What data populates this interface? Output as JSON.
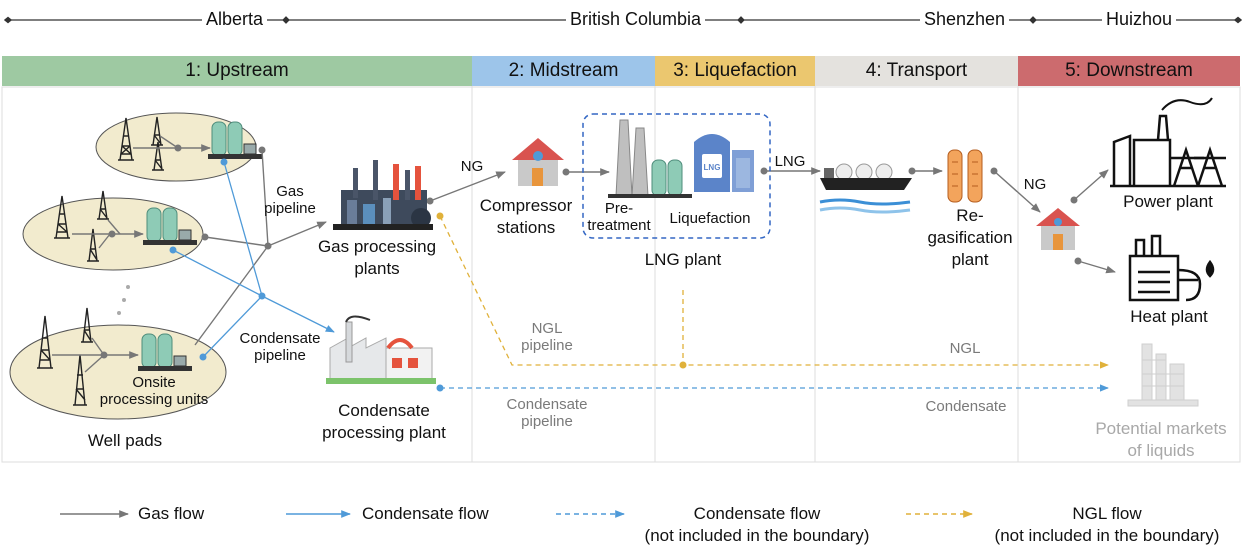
{
  "regions": [
    "Alberta",
    "British Columbia",
    "Shenzhen",
    "Huizhou"
  ],
  "stages": [
    {
      "label": "1: Upstream",
      "color": "#9ec9a2"
    },
    {
      "label": "2: Midstream",
      "color": "#9dc5ea"
    },
    {
      "label": "3: Liquefaction",
      "color": "#ebc76f"
    },
    {
      "label": "4: Transport",
      "color": "#e4e2de"
    },
    {
      "label": "5: Downstream",
      "color": "#cc6b6e"
    }
  ],
  "upstream": {
    "gas_pipeline": [
      "Gas",
      "pipeline"
    ],
    "gas_processing_plants": [
      "Gas processing",
      "plants"
    ],
    "condensate_pipeline": [
      "Condensate",
      "pipeline"
    ],
    "condensate_processing_plant": [
      "Condensate",
      "processing plant"
    ],
    "onsite_units": [
      "Onsite",
      "processing units"
    ],
    "well_pads": "Well pads"
  },
  "midstream": {
    "ng_label": "NG",
    "compressor_stations": [
      "Compressor",
      "stations"
    ],
    "ngl_pipeline": [
      "NGL",
      "pipeline"
    ],
    "condensate_pipeline": [
      "Condensate",
      "pipeline"
    ]
  },
  "liquefaction": {
    "pretreatment": [
      "Pre-",
      "treatment"
    ],
    "liquefaction": "Liquefaction",
    "lng_plant": "LNG plant",
    "lng_label": "LNG",
    "tank_text": "LNG"
  },
  "transport": {
    "regasification_plant": [
      "Re-",
      "gasification",
      "plant"
    ],
    "ngl_label": "NGL",
    "condensate_label": "Condensate"
  },
  "downstream": {
    "ng_label": "NG",
    "power_plant": "Power plant",
    "heat_plant": "Heat plant",
    "potential_markets": [
      "Potential markets",
      "of liquids"
    ]
  },
  "legend": {
    "gas_flow": "Gas flow",
    "condensate_flow": "Condensate flow",
    "condensate_flow_dashed": [
      "Condensate flow",
      "(not included in the boundary)"
    ],
    "ngl_flow": [
      "NGL flow",
      "(not included in the boundary)"
    ]
  },
  "colors": {
    "gas_flow": "#777777",
    "condensate_flow": "#4f9ad8",
    "ngl_flow": "#e0b13a"
  }
}
